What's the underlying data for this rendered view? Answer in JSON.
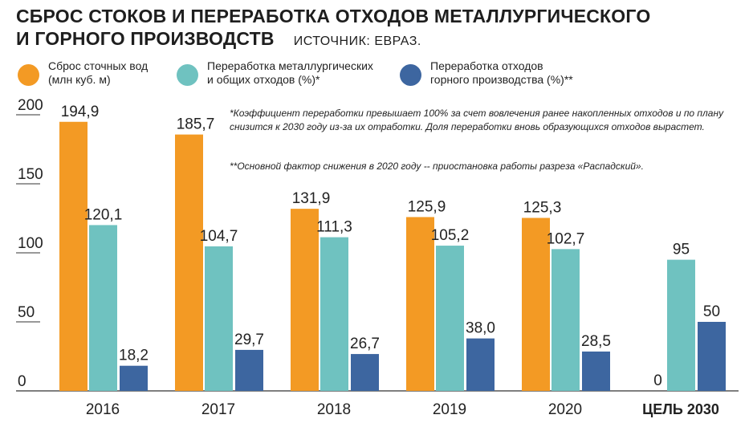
{
  "title_line1": "СБРОС СТОКОВ И ПЕРЕРАБОТКА ОТХОДОВ МЕТАЛЛУРГИЧЕСКОГО",
  "title_line2": "И ГОРНОГО ПРОИЗВОДСТВ",
  "source": "ИСТОЧНИК: ЕВРАЗ.",
  "notes": [
    "*Коэффициент переработки превышает 100% за счет вовлечения ранее накопленных отходов и по плану снизится к 2030 году из-за их отработки.  Доля переработки вновь образующихся отходов вырастет.",
    "**Основной фактор снижения в 2020 году -- приостановка работы разреза «Распадский»."
  ],
  "colors": {
    "orange": "#f39a24",
    "teal": "#6fc2c0",
    "blue": "#3d66a0"
  },
  "chart_data": {
    "type": "bar",
    "categories": [
      "2016",
      "2017",
      "2018",
      "2019",
      "2020",
      "ЦЕЛЬ 2030"
    ],
    "series": [
      {
        "name": "Сброс сточных вод\n(млн куб. м)",
        "color": "#f39a24",
        "values": [
          194.9,
          185.7,
          131.9,
          125.9,
          125.3,
          0
        ],
        "labels": [
          "194,9",
          "185,7",
          "131,9",
          "125,9",
          "125,3",
          "0"
        ]
      },
      {
        "name": "Переработка металлургических\nи общих отходов (%)*",
        "color": "#6fc2c0",
        "values": [
          120.1,
          104.7,
          111.3,
          105.2,
          102.7,
          95
        ],
        "labels": [
          "120,1",
          "104,7",
          "111,3",
          "105,2",
          "102,7",
          "95"
        ]
      },
      {
        "name": "Переработка отходов\nгорного производства (%)**",
        "color": "#3d66a0",
        "values": [
          18.2,
          29.7,
          26.7,
          38.0,
          28.5,
          50
        ],
        "labels": [
          "18,2",
          "29,7",
          "26,7",
          "38,0",
          "28,5",
          "50"
        ]
      }
    ],
    "yticks": [
      0,
      50,
      100,
      150,
      200
    ],
    "ylim": [
      0,
      210
    ],
    "legend_position": "top"
  }
}
